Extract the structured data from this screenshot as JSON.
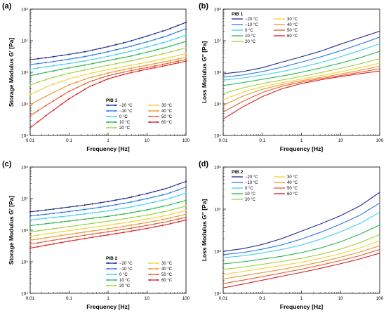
{
  "figure": {
    "temperatures": [
      "−20 °C",
      "−10 °C",
      "0 °C",
      "10 °C",
      "20 °C",
      "30 °C",
      "40 °C",
      "50 °C",
      "60 °C"
    ],
    "colors": [
      "#1f2a8a",
      "#2a78e6",
      "#3fd0ef",
      "#27b84a",
      "#9bd53a",
      "#f6d03c",
      "#f0962f",
      "#e55a2b",
      "#d81e24"
    ]
  },
  "chart_data": [
    {
      "type": "line",
      "panel_label": "(a)",
      "xlabel": "Frequency [Hz]",
      "ylabel": "Storage Modulus G' [Pa]",
      "xscale": "log",
      "yscale": "log",
      "xlim": [
        0.01,
        100
      ],
      "ylim": [
        10000,
        100000000
      ],
      "xticks": [
        0.01,
        0.1,
        1,
        10,
        100
      ],
      "xtick_labels": [
        "0.01",
        "0.1",
        "1",
        "10",
        "100"
      ],
      "yticks": [
        10000,
        100000,
        1000000,
        10000000,
        100000000
      ],
      "ytick_labels": [
        "10⁴",
        "10⁵",
        "10⁶",
        "10⁷",
        "10⁸"
      ],
      "markers": true,
      "legend": {
        "title": "PIB 1",
        "placement": "bottom-center"
      },
      "x": [
        0.01,
        0.03162,
        0.1,
        0.3162,
        1,
        3.162,
        10,
        31.62,
        100
      ],
      "series": [
        {
          "name": "−20 °C",
          "values": [
            2500000,
            3000000,
            3700000,
            4700000,
            6500000,
            9200000,
            14000000,
            22000000,
            38000000
          ]
        },
        {
          "name": "−10 °C",
          "values": [
            1750000,
            2100000,
            2600000,
            3300000,
            4500000,
            6300000,
            9200000,
            14000000,
            24000000
          ]
        },
        {
          "name": "0 °C",
          "values": [
            1250000,
            1550000,
            1900000,
            2400000,
            3200000,
            4400000,
            6300000,
            9300000,
            15000000
          ]
        },
        {
          "name": "10 °C",
          "values": [
            780000,
            1050000,
            1380000,
            1780000,
            2350000,
            3100000,
            4300000,
            6200000,
            9500000
          ]
        },
        {
          "name": "20 °C",
          "values": [
            400000,
            640000,
            930000,
            1250000,
            1670000,
            2200000,
            2950000,
            4100000,
            6000000
          ]
        },
        {
          "name": "30 °C",
          "values": [
            200000,
            380000,
            620000,
            900000,
            1220000,
            1600000,
            2080000,
            2800000,
            3900000
          ]
        },
        {
          "name": "40 °C",
          "values": [
            95000,
            200000,
            400000,
            660000,
            950000,
            1280000,
            1680000,
            2200000,
            3000000
          ]
        },
        {
          "name": "50 °C",
          "values": [
            42000,
            105000,
            250000,
            490000,
            780000,
            1080000,
            1420000,
            1880000,
            2550000
          ]
        },
        {
          "name": "60 °C",
          "values": [
            17500,
            52000,
            145000,
            340000,
            620000,
            920000,
            1250000,
            1650000,
            2250000
          ]
        }
      ]
    },
    {
      "type": "line",
      "panel_label": "(b)",
      "xlabel": "Frequency [Hz]",
      "ylabel": "Loss Modulus G'' [Pa]",
      "xscale": "log",
      "yscale": "log",
      "xlim": [
        0.01,
        100
      ],
      "ylim": [
        10000,
        100000000
      ],
      "xticks": [
        0.01,
        0.1,
        1,
        10,
        100
      ],
      "xtick_labels": [
        "0.01",
        "0.1",
        "1",
        "10",
        "100"
      ],
      "yticks": [
        10000,
        100000,
        1000000,
        10000000,
        100000000
      ],
      "ytick_labels": [
        "10⁴",
        "10⁵",
        "10⁶",
        "10⁷",
        "10⁸"
      ],
      "markers": false,
      "legend": {
        "title": "PIB 1",
        "placement": "top-left"
      },
      "x": [
        0.01,
        0.03162,
        0.1,
        0.3162,
        1,
        3.162,
        10,
        31.62,
        100
      ],
      "series": [
        {
          "name": "−20 °C",
          "values": [
            900000,
            1050000,
            1400000,
            2100000,
            3100000,
            4700000,
            7800000,
            12500000,
            20000000
          ]
        },
        {
          "name": "−10 °C",
          "values": [
            700000,
            820000,
            1050000,
            1450000,
            2100000,
            3100000,
            4800000,
            7800000,
            13000000
          ]
        },
        {
          "name": "0 °C",
          "values": [
            560000,
            660000,
            820000,
            1050000,
            1450000,
            2050000,
            3100000,
            4900000,
            8000000
          ]
        },
        {
          "name": "10 °C",
          "values": [
            380000,
            470000,
            600000,
            760000,
            1000000,
            1380000,
            1950000,
            2900000,
            4600000
          ]
        },
        {
          "name": "20 °C",
          "values": [
            210000,
            320000,
            440000,
            570000,
            740000,
            980000,
            1330000,
            1850000,
            2700000
          ]
        },
        {
          "name": "30 °C",
          "values": [
            135000,
            235000,
            350000,
            470000,
            610000,
            790000,
            1040000,
            1400000,
            1950000
          ]
        },
        {
          "name": "40 °C",
          "values": [
            90000,
            175000,
            290000,
            410000,
            540000,
            690000,
            880000,
            1150000,
            1550000
          ]
        },
        {
          "name": "50 °C",
          "values": [
            55000,
            120000,
            230000,
            360000,
            490000,
            630000,
            790000,
            1000000,
            1300000
          ]
        },
        {
          "name": "60 °C",
          "values": [
            33000,
            80000,
            170000,
            300000,
            440000,
            580000,
            730000,
            900000,
            1100000
          ]
        }
      ]
    },
    {
      "type": "line",
      "panel_label": "(c)",
      "xlabel": "Frequency [Hz]",
      "ylabel": "Storage Modulus G' [Pa]",
      "xscale": "log",
      "yscale": "log",
      "xlim": [
        0.01,
        100
      ],
      "ylim": [
        10000,
        100000000
      ],
      "xticks": [
        0.01,
        0.1,
        1,
        10,
        100
      ],
      "xtick_labels": [
        "0.01",
        "0.1",
        "1",
        "10",
        "100"
      ],
      "yticks": [
        10000,
        100000,
        1000000,
        10000000,
        100000000
      ],
      "ytick_labels": [
        "10⁴",
        "10⁵",
        "10⁶",
        "10⁷",
        "10⁸"
      ],
      "markers": true,
      "legend": {
        "title": "PIB 2",
        "placement": "bottom-center"
      },
      "x": [
        0.01,
        0.03162,
        0.1,
        0.3162,
        1,
        3.162,
        10,
        31.62,
        100
      ],
      "series": [
        {
          "name": "−20 °C",
          "values": [
            3800000,
            4500000,
            5400000,
            6500000,
            8100000,
            10500000,
            14500000,
            21000000,
            35000000
          ]
        },
        {
          "name": "−10 °C",
          "values": [
            2800000,
            3300000,
            3900000,
            4700000,
            5800000,
            7400000,
            10000000,
            14000000,
            23000000
          ]
        },
        {
          "name": "0 °C",
          "values": [
            2100000,
            2450000,
            2850000,
            3400000,
            4100000,
            5200000,
            6900000,
            9500000,
            15000000
          ]
        },
        {
          "name": "10 °C",
          "values": [
            1400000,
            1650000,
            1950000,
            2300000,
            2750000,
            3400000,
            4400000,
            6000000,
            8800000
          ]
        },
        {
          "name": "20 °C",
          "values": [
            880000,
            1070000,
            1300000,
            1580000,
            1920000,
            2380000,
            3000000,
            4000000,
            5800000
          ]
        },
        {
          "name": "30 °C",
          "values": [
            640000,
            790000,
            970000,
            1180000,
            1440000,
            1780000,
            2250000,
            2950000,
            4200000
          ]
        },
        {
          "name": "40 °C",
          "values": [
            480000,
            600000,
            740000,
            910000,
            1110000,
            1380000,
            1750000,
            2300000,
            3200000
          ]
        },
        {
          "name": "50 °C",
          "values": [
            360000,
            460000,
            580000,
            720000,
            890000,
            1110000,
            1410000,
            1850000,
            2550000
          ]
        },
        {
          "name": "60 °C",
          "values": [
            270000,
            350000,
            450000,
            570000,
            710000,
            890000,
            1140000,
            1500000,
            2100000
          ]
        }
      ]
    },
    {
      "type": "line",
      "panel_label": "(d)",
      "xlabel": "Frequency [Hz]",
      "ylabel": "Loss Modulus G'' [Pa]",
      "xscale": "log",
      "yscale": "log",
      "xlim": [
        0.01,
        100
      ],
      "ylim": [
        100000,
        100000000
      ],
      "xticks": [
        0.01,
        0.1,
        1,
        10,
        100
      ],
      "xtick_labels": [
        "0.01",
        "0.1",
        "1",
        "10",
        "100"
      ],
      "yticks": [
        100000,
        1000000,
        10000000,
        100000000
      ],
      "ytick_labels": [
        "10⁵",
        "10⁶",
        "10⁷",
        "10⁸"
      ],
      "markers": false,
      "legend": {
        "title": "PIB 2",
        "placement": "top-left"
      },
      "x": [
        0.01,
        0.03162,
        0.1,
        0.3162,
        1,
        3.162,
        10,
        31.62,
        100
      ],
      "series": [
        {
          "name": "−20 °C",
          "values": [
            1000000,
            1150000,
            1450000,
            2000000,
            3000000,
            4500000,
            7000000,
            12000000,
            25000000
          ]
        },
        {
          "name": "−10 °C",
          "values": [
            830000,
            930000,
            1120000,
            1420000,
            1950000,
            2850000,
            4400000,
            7200000,
            14000000
          ]
        },
        {
          "name": "0 °C",
          "values": [
            700000,
            780000,
            910000,
            1100000,
            1400000,
            1950000,
            2900000,
            4600000,
            8500000
          ]
        },
        {
          "name": "10 °C",
          "values": [
            500000,
            560000,
            650000,
            760000,
            930000,
            1200000,
            1680000,
            2550000,
            4200000
          ]
        },
        {
          "name": "20 °C",
          "values": [
            370000,
            420000,
            490000,
            570000,
            680000,
            850000,
            1120000,
            1600000,
            2500000
          ]
        },
        {
          "name": "30 °C",
          "values": [
            280000,
            330000,
            390000,
            460000,
            550000,
            680000,
            880000,
            1200000,
            1750000
          ]
        },
        {
          "name": "40 °C",
          "values": [
            220000,
            260000,
            310000,
            370000,
            450000,
            560000,
            720000,
            960000,
            1350000
          ]
        },
        {
          "name": "50 °C",
          "values": [
            170000,
            205000,
            250000,
            305000,
            375000,
            470000,
            600000,
            790000,
            1100000
          ]
        },
        {
          "name": "60 °C",
          "values": [
            135000,
            165000,
            205000,
            255000,
            315000,
            395000,
            505000,
            660000,
            900000
          ]
        }
      ]
    }
  ]
}
